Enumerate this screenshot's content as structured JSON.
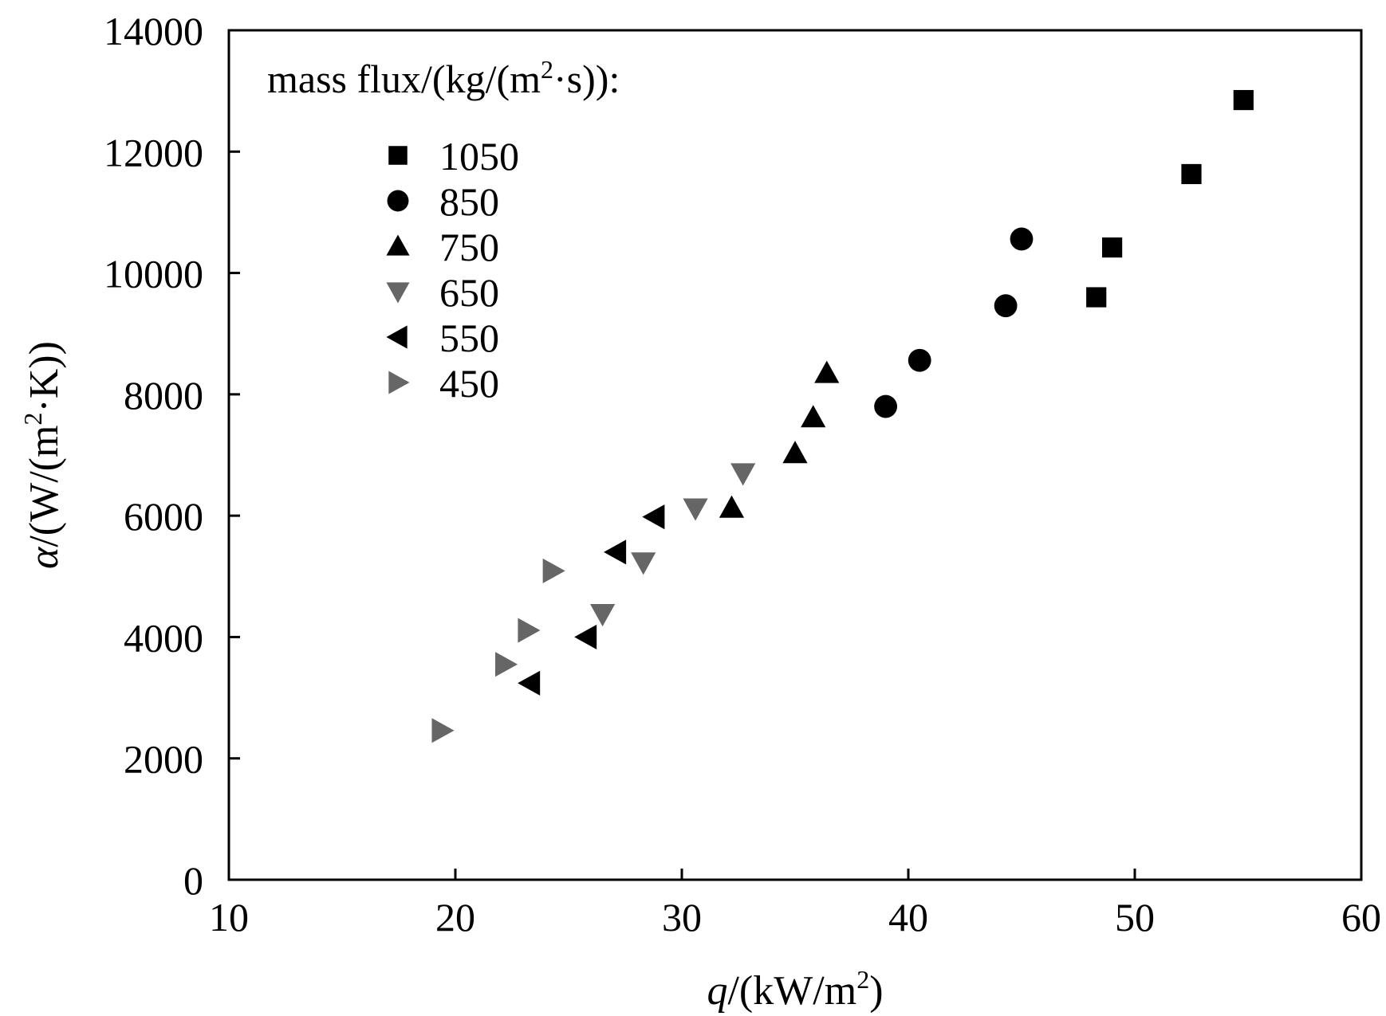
{
  "chart_data": {
    "type": "scatter",
    "title": "",
    "xlabel": {
      "italic": "q",
      "rest": "/(kW/m",
      "sup": "2",
      "close": ")"
    },
    "ylabel": {
      "italic": "α",
      "rest": "/(W/(m",
      "sup": "2",
      "dot": "·K))"
    },
    "xlim": [
      10,
      60
    ],
    "ylim": [
      0,
      14000
    ],
    "xticks": [
      10,
      20,
      30,
      40,
      50,
      60
    ],
    "yticks": [
      0,
      2000,
      4000,
      6000,
      8000,
      10000,
      12000,
      14000
    ],
    "grid": false,
    "legend": {
      "position": "top-left",
      "title": "mass flux/(kg/(m",
      "title_sup": "2",
      "title_end": "·s)):"
    },
    "series": [
      {
        "name": "1050",
        "marker": "square",
        "color": "#000000",
        "points": [
          [
            48.3,
            9600
          ],
          [
            49.0,
            10420
          ],
          [
            52.5,
            11630
          ],
          [
            54.8,
            12850
          ]
        ]
      },
      {
        "name": "850",
        "marker": "circle",
        "color": "#000000",
        "points": [
          [
            39.0,
            7800
          ],
          [
            40.5,
            8560
          ],
          [
            44.3,
            9460
          ],
          [
            45.0,
            10560
          ]
        ]
      },
      {
        "name": "750",
        "marker": "triangle-up",
        "color": "#000000",
        "points": [
          [
            32.2,
            6130
          ],
          [
            35.0,
            7030
          ],
          [
            35.8,
            7620
          ],
          [
            36.4,
            8350
          ]
        ]
      },
      {
        "name": "650",
        "marker": "triangle-down",
        "color": "#666666",
        "points": [
          [
            26.5,
            4380
          ],
          [
            28.3,
            5230
          ],
          [
            30.6,
            6120
          ],
          [
            32.7,
            6700
          ]
        ]
      },
      {
        "name": "550",
        "marker": "triangle-left",
        "color": "#000000",
        "points": [
          [
            23.3,
            3240
          ],
          [
            25.8,
            4000
          ],
          [
            27.1,
            5400
          ],
          [
            28.8,
            5980
          ]
        ]
      },
      {
        "name": "450",
        "marker": "triangle-right",
        "color": "#666666",
        "points": [
          [
            19.4,
            2460
          ],
          [
            22.2,
            3550
          ],
          [
            23.2,
            4110
          ],
          [
            24.3,
            5090
          ]
        ]
      }
    ]
  }
}
